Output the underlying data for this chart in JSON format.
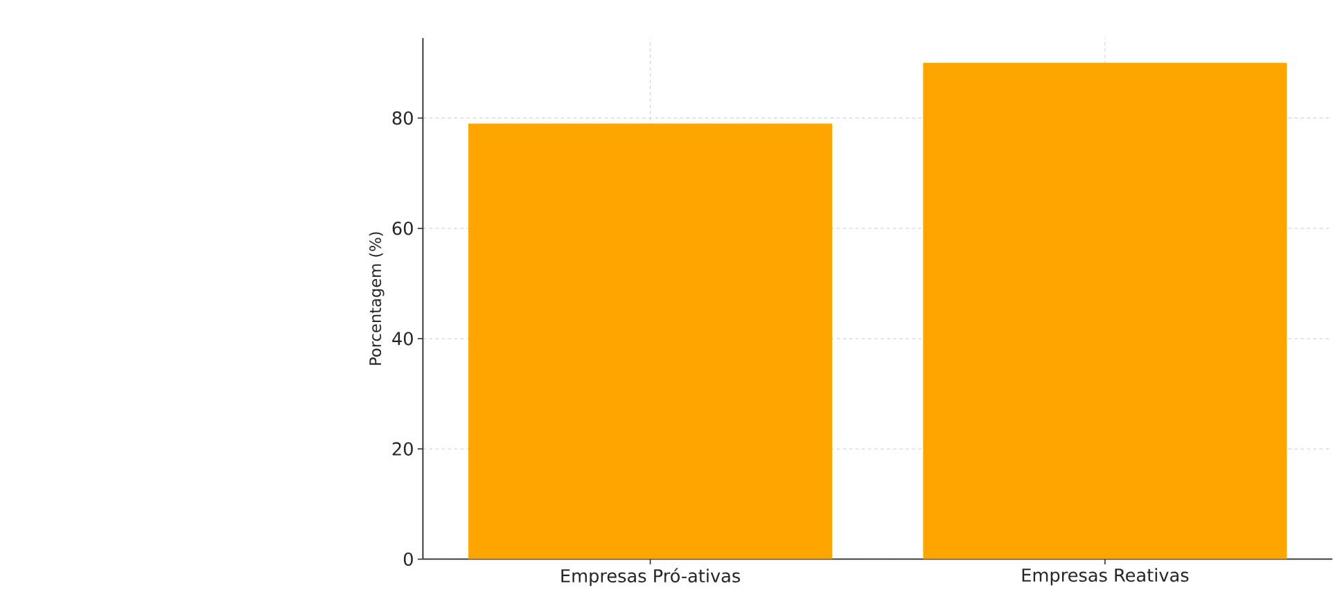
{
  "chart_data": {
    "type": "bar",
    "ylabel": "Porcentagem (%)",
    "categories": [
      "Empresas Pró-ativas",
      "Empresas Reativas"
    ],
    "values": [
      79,
      90
    ],
    "color": "#ffa500",
    "ylim": [
      0,
      94.5
    ],
    "yticks": [
      0,
      20,
      40,
      60,
      80
    ],
    "grid": true
  }
}
